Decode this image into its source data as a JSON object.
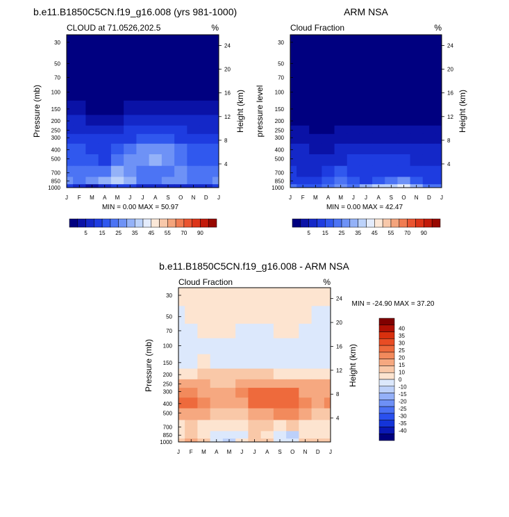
{
  "page": {
    "top_left_title": "b.e11.B1850C5CN.f19_g16.008 (yrs 981-1000)",
    "top_right_title": "ARM NSA",
    "bottom_title": "b.e11.B1850C5CN.f19_g16.008 - ARM NSA"
  },
  "colors": {
    "abs_scale": [
      "#000080",
      "#0a12a6",
      "#1428c8",
      "#1e3ce0",
      "#3058ee",
      "#4c74f4",
      "#6e92f6",
      "#94b2f8",
      "#bcd2fa",
      "#e4ecfc",
      "#fce8d8",
      "#f8c8aa",
      "#f4a47c",
      "#f07c52",
      "#ea5430",
      "#dc3418",
      "#c21a0a",
      "#980800"
    ],
    "diff_scale": [
      "#00007e",
      "#0a18b4",
      "#1434d8",
      "#2a50ee",
      "#4a70f4",
      "#6e90f6",
      "#94b0f8",
      "#bcd0fa",
      "#dce8fc",
      "#fde4d0",
      "#f9c8a8",
      "#f6a880",
      "#f28a5c",
      "#ee6a3c",
      "#e84c24",
      "#d8300e",
      "#b01004",
      "#800000"
    ],
    "axis": "#000000"
  },
  "chart_data": [
    {
      "type": "heatmap",
      "title": "CLOUD at 71.0526,202.5",
      "units_label": "%",
      "xlabel": "",
      "ylabel": "Pressure (mb)",
      "y2label": "Height (km)",
      "x_ticks": [
        "J",
        "F",
        "M",
        "A",
        "M",
        "J",
        "J",
        "A",
        "S",
        "O",
        "N",
        "D",
        "J"
      ],
      "y_ticks": [
        "30",
        "50",
        "70",
        "100",
        "150",
        "200",
        "250",
        "300",
        "400",
        "500",
        "700",
        "850",
        "1000"
      ],
      "y_tick_values": [
        30,
        50,
        70,
        100,
        150,
        200,
        250,
        300,
        400,
        500,
        700,
        850,
        1000
      ],
      "y2_ticks": [
        "24",
        "20",
        "16",
        "12",
        "8",
        "4"
      ],
      "y2_tick_values": [
        24,
        20,
        16,
        12,
        8,
        4
      ],
      "ylim": [
        1000,
        25
      ],
      "min_max_text": "MIN =   0.00 MAX =  50.97",
      "colorbar_labels": [
        "5",
        "15",
        "25",
        "35",
        "45",
        "55",
        "70",
        "90"
      ],
      "colorbar_orientation": "horizontal",
      "levels": [
        0,
        1,
        5,
        10,
        15,
        20,
        25,
        30,
        35,
        40,
        45,
        50,
        55,
        60,
        70,
        80,
        90,
        100
      ],
      "months": [
        "Jan",
        "Feb",
        "Mar",
        "Apr",
        "May",
        "Jun",
        "Jul",
        "Aug",
        "Sep",
        "Oct",
        "Nov",
        "Dec",
        "Jan"
      ],
      "pressure_levels": [
        30,
        100,
        150,
        200,
        250,
        300,
        400,
        500,
        700,
        850,
        1000
      ],
      "values": [
        [
          0,
          0,
          0,
          0,
          0,
          0,
          0,
          0,
          0,
          0,
          0,
          0,
          0
        ],
        [
          0,
          0,
          0,
          0,
          0,
          0,
          0,
          0,
          0,
          0,
          0,
          0,
          0
        ],
        [
          1,
          1,
          0,
          0,
          0,
          1,
          1,
          1,
          1,
          1,
          1,
          1,
          1
        ],
        [
          5,
          5,
          4,
          3,
          4,
          5,
          6,
          6,
          6,
          5,
          5,
          5,
          5
        ],
        [
          8,
          9,
          8,
          7,
          9,
          10,
          11,
          12,
          11,
          10,
          9,
          9,
          8
        ],
        [
          12,
          12,
          11,
          10,
          13,
          14,
          16,
          17,
          16,
          14,
          13,
          12,
          12
        ],
        [
          15,
          15,
          14,
          12,
          18,
          22,
          26,
          28,
          25,
          20,
          17,
          15,
          15
        ],
        [
          18,
          17,
          16,
          14,
          22,
          26,
          28,
          30,
          26,
          21,
          19,
          18,
          18
        ],
        [
          22,
          20,
          20,
          24,
          30,
          28,
          24,
          22,
          24,
          25,
          23,
          22,
          22
        ],
        [
          25,
          24,
          26,
          30,
          36,
          30,
          22,
          24,
          26,
          28,
          22,
          24,
          25
        ],
        [
          10,
          6,
          4,
          8,
          14,
          10,
          8,
          7,
          9,
          8,
          6,
          5,
          10
        ]
      ]
    },
    {
      "type": "heatmap",
      "title": "Cloud Fraction",
      "units_label": "%",
      "xlabel": "",
      "ylabel": "pressure level",
      "y2label": "Height (km)",
      "x_ticks": [
        "J",
        "F",
        "M",
        "A",
        "M",
        "J",
        "J",
        "A",
        "S",
        "O",
        "N",
        "D",
        "J"
      ],
      "y_ticks": [
        "30",
        "50",
        "70",
        "100",
        "150",
        "200",
        "250",
        "300",
        "400",
        "500",
        "700",
        "850",
        "1000"
      ],
      "y_tick_values": [
        30,
        50,
        70,
        100,
        150,
        200,
        250,
        300,
        400,
        500,
        700,
        850,
        1000
      ],
      "y2_ticks": [
        "24",
        "20",
        "16",
        "12",
        "8",
        "4"
      ],
      "y2_tick_values": [
        24,
        20,
        16,
        12,
        8,
        4
      ],
      "ylim": [
        1000,
        25
      ],
      "min_max_text": "MIN =   0.00 MAX =  42.47",
      "colorbar_labels": [
        "5",
        "15",
        "25",
        "35",
        "45",
        "55",
        "70",
        "90"
      ],
      "colorbar_orientation": "horizontal",
      "levels": [
        0,
        1,
        5,
        10,
        15,
        20,
        25,
        30,
        35,
        40,
        45,
        50,
        55,
        60,
        70,
        80,
        90,
        100
      ],
      "months": [
        "Jan",
        "Feb",
        "Mar",
        "Apr",
        "May",
        "Jun",
        "Jul",
        "Aug",
        "Sep",
        "Oct",
        "Nov",
        "Dec",
        "Jan"
      ],
      "pressure_levels": [
        30,
        100,
        150,
        200,
        250,
        300,
        400,
        500,
        700,
        850,
        1000
      ],
      "values": [
        [
          0,
          0,
          0,
          0,
          0,
          0,
          0,
          0,
          0,
          0,
          0,
          0,
          0
        ],
        [
          0,
          0,
          0,
          0,
          0,
          0,
          0,
          0,
          0,
          0,
          0,
          0,
          0
        ],
        [
          0,
          0,
          0,
          0,
          0,
          0,
          0,
          0,
          0,
          0,
          0,
          0,
          0
        ],
        [
          0,
          0,
          0,
          0,
          0,
          0,
          0,
          0,
          0,
          0,
          0,
          0,
          0
        ],
        [
          1,
          1,
          0,
          0,
          1,
          1,
          1,
          1,
          1,
          1,
          1,
          1,
          1
        ],
        [
          3,
          2,
          1,
          1,
          2,
          3,
          4,
          4,
          4,
          3,
          3,
          3,
          3
        ],
        [
          6,
          5,
          4,
          4,
          5,
          7,
          8,
          9,
          8,
          7,
          6,
          6,
          6
        ],
        [
          8,
          7,
          6,
          7,
          9,
          11,
          12,
          13,
          12,
          10,
          9,
          8,
          8
        ],
        [
          10,
          9,
          9,
          12,
          16,
          12,
          10,
          11,
          13,
          13,
          11,
          10,
          10
        ],
        [
          13,
          12,
          14,
          18,
          22,
          18,
          14,
          18,
          22,
          26,
          18,
          14,
          13
        ],
        [
          20,
          18,
          16,
          22,
          28,
          24,
          30,
          36,
          38,
          40,
          32,
          24,
          20
        ]
      ]
    },
    {
      "type": "heatmap",
      "title": "Cloud Fraction",
      "units_label": "%",
      "xlabel": "",
      "ylabel": "Pressure (mb)",
      "y2label": "Height (km)",
      "x_ticks": [
        "J",
        "F",
        "M",
        "A",
        "M",
        "J",
        "J",
        "A",
        "S",
        "O",
        "N",
        "D",
        "J"
      ],
      "y_ticks": [
        "30",
        "50",
        "70",
        "100",
        "150",
        "200",
        "250",
        "300",
        "400",
        "500",
        "700",
        "850",
        "1000"
      ],
      "y_tick_values": [
        30,
        50,
        70,
        100,
        150,
        200,
        250,
        300,
        400,
        500,
        700,
        850,
        1000
      ],
      "y2_ticks": [
        "24",
        "20",
        "16",
        "12",
        "8",
        "4"
      ],
      "y2_tick_values": [
        24,
        20,
        16,
        12,
        8,
        4
      ],
      "ylim": [
        1000,
        25
      ],
      "min_max_text": "MIN = -24.90 MAX =  37.20",
      "colorbar_labels": [
        "40",
        "35",
        "30",
        "25",
        "20",
        "15",
        "10",
        "0",
        "-10",
        "-15",
        "-20",
        "-25",
        "-30",
        "-35",
        "-40"
      ],
      "colorbar_orientation": "vertical",
      "levels": [
        -45,
        -40,
        -35,
        -30,
        -25,
        -20,
        -15,
        -10,
        -5,
        0,
        5,
        10,
        15,
        20,
        25,
        30,
        35,
        40,
        45
      ],
      "months": [
        "Jan",
        "Feb",
        "Mar",
        "Apr",
        "May",
        "Jun",
        "Jul",
        "Aug",
        "Sep",
        "Oct",
        "Nov",
        "Dec",
        "Jan"
      ],
      "pressure_levels": [
        30,
        50,
        70,
        100,
        150,
        200,
        250,
        300,
        400,
        500,
        700,
        850,
        1000
      ],
      "values": [
        [
          2,
          2,
          2,
          2,
          2,
          2,
          2,
          2,
          2,
          2,
          2,
          2,
          2
        ],
        [
          -3,
          2,
          2,
          2,
          2,
          2,
          2,
          2,
          2,
          2,
          2,
          -3,
          -3
        ],
        [
          -3,
          -3,
          2,
          2,
          2,
          -3,
          -3,
          -3,
          2,
          2,
          -3,
          -3,
          -3
        ],
        [
          -3,
          -3,
          -3,
          -3,
          -3,
          -3,
          -3,
          -3,
          -3,
          -3,
          -3,
          -3,
          -3
        ],
        [
          -3,
          -3,
          2,
          -3,
          -3,
          -3,
          -3,
          -3,
          -3,
          -3,
          -3,
          -3,
          -3
        ],
        [
          2,
          4,
          5,
          6,
          7,
          7,
          6,
          5,
          4,
          4,
          4,
          4,
          2
        ],
        [
          10,
          11,
          10,
          9,
          9,
          10,
          12,
          14,
          14,
          12,
          11,
          10,
          10
        ],
        [
          16,
          18,
          14,
          10,
          12,
          16,
          20,
          22,
          24,
          20,
          14,
          12,
          14
        ],
        [
          22,
          24,
          18,
          12,
          11,
          14,
          20,
          22,
          24,
          24,
          16,
          12,
          16
        ],
        [
          12,
          14,
          12,
          8,
          6,
          8,
          10,
          12,
          16,
          18,
          10,
          6,
          8
        ],
        [
          3,
          6,
          4,
          1,
          0,
          2,
          8,
          6,
          4,
          6,
          4,
          2,
          2
        ],
        [
          2,
          6,
          4,
          -2,
          -4,
          -2,
          6,
          4,
          -5,
          -6,
          4,
          2,
          2
        ],
        [
          8,
          12,
          6,
          -2,
          -6,
          2,
          8,
          6,
          -4,
          -4,
          6,
          8,
          8
        ]
      ]
    }
  ]
}
